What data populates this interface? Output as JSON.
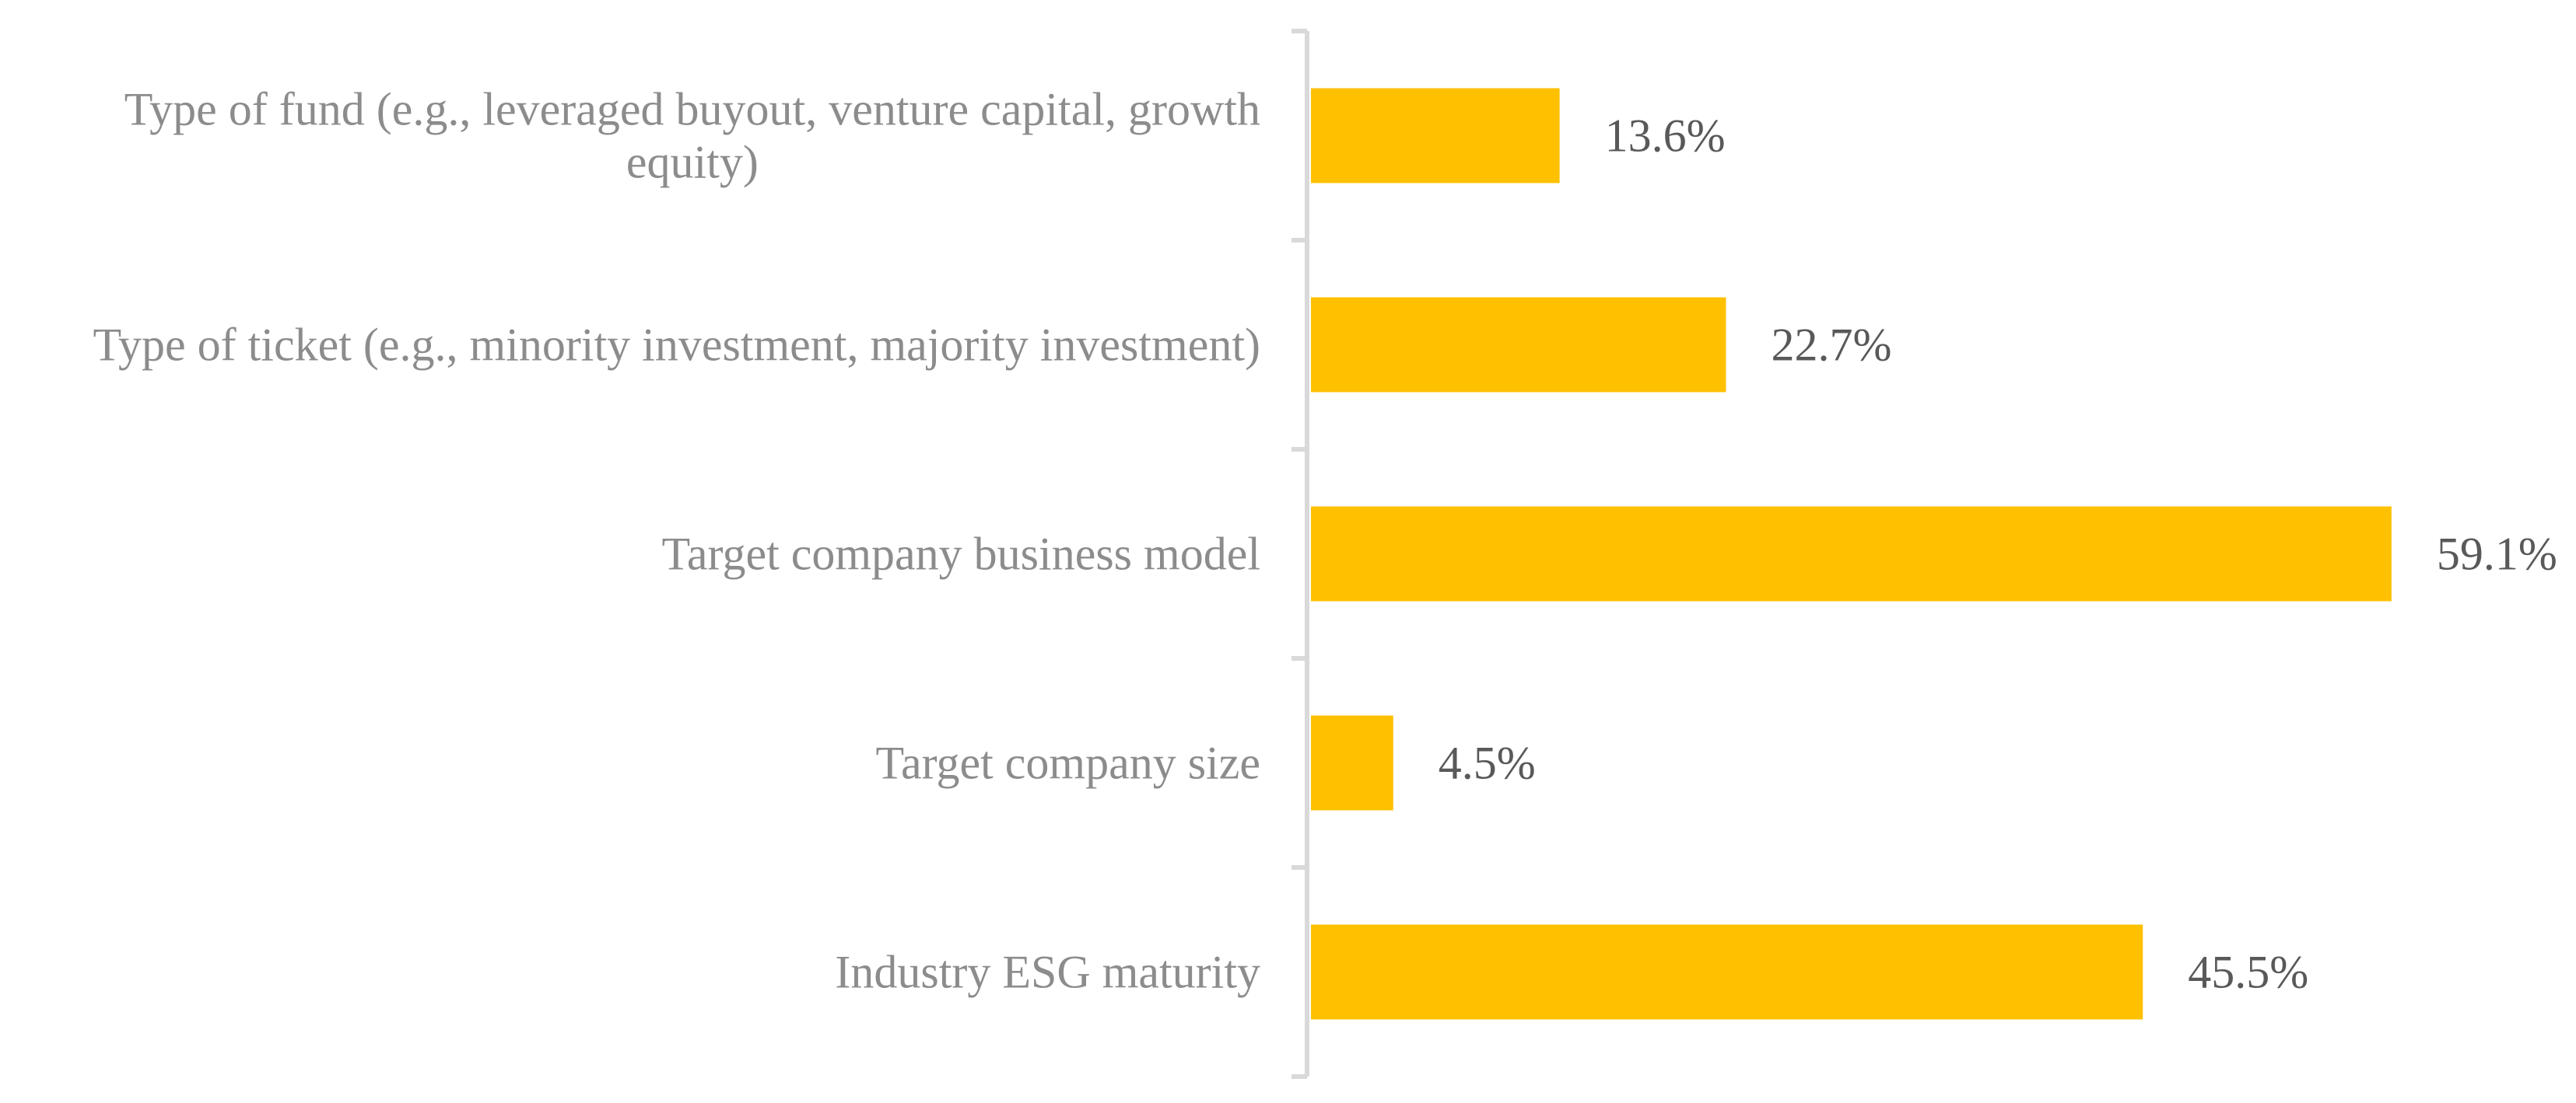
{
  "chart_data": {
    "type": "bar",
    "orientation": "horizontal",
    "title": "",
    "xlabel": "",
    "ylabel": "",
    "categories": [
      [
        "Type of fund (e.g., leveraged buyout, venture capital, growth",
        "equity)"
      ],
      [
        "Type of ticket (e.g., minority investment, majority investment)"
      ],
      [
        "Target company business model"
      ],
      [
        "Target company size"
      ],
      [
        "Industry ESG maturity"
      ]
    ],
    "values": [
      13.6,
      22.7,
      59.1,
      4.5,
      45.5
    ],
    "value_labels": [
      "13.6%",
      "22.7%",
      "59.1%",
      "4.5%",
      "45.5%"
    ],
    "value_unit": "%",
    "xlim": [
      0,
      60
    ],
    "grid": false,
    "legend": "none",
    "colors": {
      "bar": "#FFC000",
      "axis": "#d9d9d9",
      "category_text": "#8c8c8c",
      "value_text": "#595959"
    }
  }
}
